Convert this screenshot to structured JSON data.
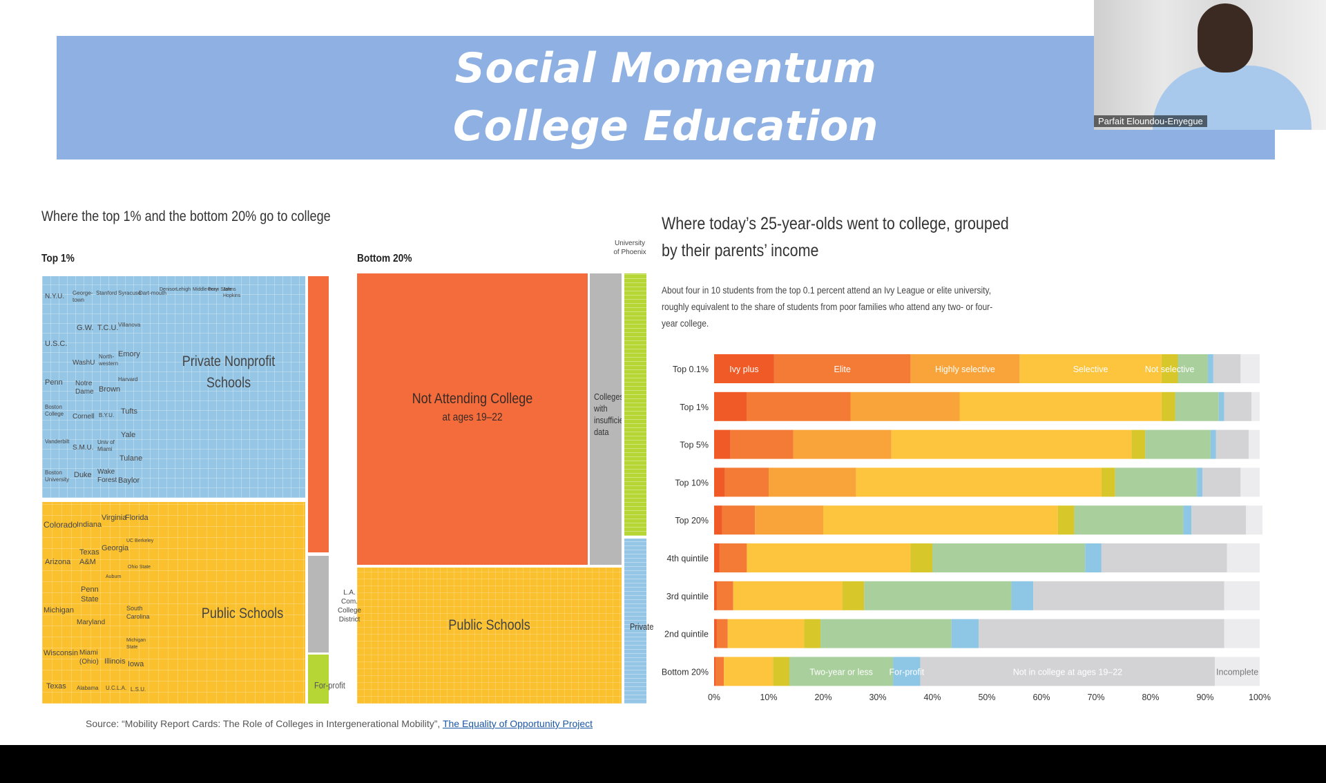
{
  "banner": {
    "line1": "Social Momentum",
    "line2": "College Education"
  },
  "webcam": {
    "name": "Parfait Eloundou-Enyegue"
  },
  "left_title": "Where the top 1% and the bottom 20% go to college",
  "top1": {
    "header": "Top 1%",
    "private_label1": "Private Nonprofit",
    "private_label2": "Schools",
    "public_label": "Public Schools",
    "for_profit": "For-profit",
    "private_names": [
      {
        "t": "N.Y.U."
      },
      {
        "t": "George-town"
      },
      {
        "t": "Stanford"
      },
      {
        "t": "Syracuse"
      },
      {
        "t": "Dart-mouth"
      },
      {
        "t": "Denison"
      },
      {
        "t": "Lehigh"
      },
      {
        "t": "Middle-bury"
      },
      {
        "t": "Penn State"
      },
      {
        "t": "Johns Hopkins"
      },
      {
        "t": "G.W."
      },
      {
        "t": "T.C.U."
      },
      {
        "t": "Villanova"
      },
      {
        "t": "U.S.C."
      },
      {
        "t": "WashU"
      },
      {
        "t": "North-western"
      },
      {
        "t": "Emory"
      },
      {
        "t": "Penn"
      },
      {
        "t": "Notre Dame"
      },
      {
        "t": "Brown"
      },
      {
        "t": "Harvard"
      },
      {
        "t": "Tufts"
      },
      {
        "t": "Boston College"
      },
      {
        "t": "Cornell"
      },
      {
        "t": "B.Y.U."
      },
      {
        "t": "Yale"
      },
      {
        "t": "Vanderbilt"
      },
      {
        "t": "S.M.U."
      },
      {
        "t": "Univ of Miami"
      },
      {
        "t": "Tulane"
      },
      {
        "t": "Boston University"
      },
      {
        "t": "Duke"
      },
      {
        "t": "Wake Forest"
      },
      {
        "t": "Baylor"
      }
    ],
    "public_names": [
      {
        "t": "Colorado"
      },
      {
        "t": "Indiana"
      },
      {
        "t": "Virginia"
      },
      {
        "t": "Florida"
      },
      {
        "t": "UC Berkeley"
      },
      {
        "t": "Arizona"
      },
      {
        "t": "Texas A&M"
      },
      {
        "t": "Georgia"
      },
      {
        "t": "Ohio State"
      },
      {
        "t": "Auburn"
      },
      {
        "t": "Penn State"
      },
      {
        "t": "Michigan"
      },
      {
        "t": "Maryland"
      },
      {
        "t": "South Carolina"
      },
      {
        "t": "Michigan State"
      },
      {
        "t": "Wisconsin"
      },
      {
        "t": "Miami (Ohio)"
      },
      {
        "t": "Illinois"
      },
      {
        "t": "Iowa"
      },
      {
        "t": "Texas"
      },
      {
        "t": "Alabama"
      },
      {
        "t": "U.C.L.A."
      },
      {
        "t": "L.S.U."
      }
    ]
  },
  "bottom20": {
    "header": "Bottom 20%",
    "not_attending": "Not Attending College",
    "not_attending_sub": "at ages 19–22",
    "insufficient": "Colleges with insufficient data",
    "public_label": "Public Schools",
    "la_label": "L.A. Com. College District",
    "phoenix": "University of Phoenix",
    "private": "Private"
  },
  "right_title_line1": "Where today’s 25-year-olds went to college, grouped",
  "right_title_line2": "by their parents’ income",
  "right_desc": [
    "About four in 10 students from the top 0.1 percent attend an Ivy League or elite university,",
    "roughly equivalent to the share of students from poor families who attend any two- or four-",
    "year college."
  ],
  "source": {
    "prefix": "Source: “Mobility Report Cards: The Role of Colleges in Intergenerational Mobility”, ",
    "link": "The Equality of Opportunity Project"
  },
  "colors": {
    "ivy_plus": "#ef5a27",
    "elite": "#f47b35",
    "highly_selective": "#f8a43a",
    "selective": "#fdc43e",
    "not_selective": "#d7c72b",
    "two_year": "#a9cf9d",
    "for_profit": "#8ec6e6",
    "not_in_college": "#d3d3d5",
    "incomplete": "#ececee",
    "private_blue": "#96c6e6",
    "public_yellow": "#fbc02d",
    "orange_block": "#f46c3c",
    "gray_block": "#b7b7b7",
    "green_block": "#b5d634",
    "banner": "#8eb0e3"
  },
  "chart_data": {
    "type": "bar",
    "orientation": "horizontal-stacked",
    "categories": [
      "Top 0.1%",
      "Top 1%",
      "Top 5%",
      "Top 10%",
      "Top 20%",
      "4th quintile",
      "3rd quintile",
      "2nd quintile",
      "Bottom 20%"
    ],
    "series": [
      {
        "name": "Ivy plus",
        "values": [
          11,
          6,
          3,
          2,
          1.5,
          1,
          0.5,
          0.5,
          0.3
        ]
      },
      {
        "name": "Elite",
        "values": [
          25,
          19,
          11.5,
          8,
          6,
          5,
          3,
          2,
          1.5
        ]
      },
      {
        "name": "Highly selective",
        "values": [
          20,
          20,
          18,
          16,
          12.5,
          0,
          0,
          0,
          0
        ]
      },
      {
        "name": "Selective",
        "values": [
          26,
          37,
          44,
          45,
          43,
          30,
          20,
          14,
          9
        ]
      },
      {
        "name": "Not selective",
        "values": [
          3,
          2.5,
          2.5,
          2.5,
          3,
          4,
          4,
          3,
          3
        ]
      },
      {
        "name": "Two-year or less",
        "values": [
          5.5,
          8,
          12,
          15,
          20,
          28,
          27,
          24,
          19
        ]
      },
      {
        "name": "For-profit",
        "values": [
          1,
          1,
          1,
          1,
          1.5,
          3,
          4,
          5,
          5
        ]
      },
      {
        "name": "Not in college",
        "values": [
          5,
          5,
          6,
          7,
          10,
          23,
          35,
          45,
          54
        ]
      },
      {
        "name": "Incomplete",
        "values": [
          3.5,
          1.5,
          2,
          3.5,
          3,
          6,
          6.5,
          6.5,
          8.2
        ]
      }
    ],
    "xticks": [
      "0%",
      "10%",
      "20%",
      "30%",
      "40%",
      "50%",
      "60%",
      "70%",
      "80%",
      "90%",
      "100%"
    ],
    "xlim": [
      0,
      100
    ],
    "inline_labels_top": [
      "Ivy plus",
      "Elite",
      "Highly selective",
      "Selective",
      "Not selective"
    ],
    "inline_labels_bottom": [
      "Two-year or less",
      "For-profit",
      "Not in college at ages 19–22",
      "Incomplete"
    ]
  }
}
